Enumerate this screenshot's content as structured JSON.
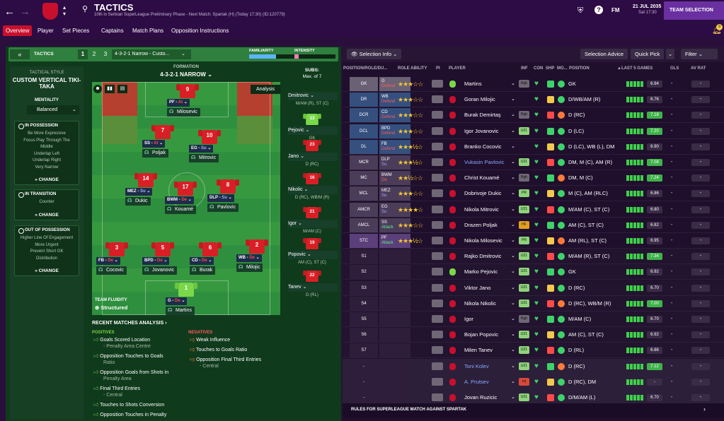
{
  "header": {
    "title": "TACTICS",
    "subtitle": "10th in Serbian SuperLeague Preliminary Phase - Next Match: Spartak (H) (Today 17:30) (ID:120779)",
    "date": "21 JUL 2035",
    "time": "Sat 17:30",
    "fm_label": "FM",
    "team_selection_label": "TEAM SELECTION",
    "notif_count": "9"
  },
  "nav": {
    "tabs": [
      "Overview",
      "Player",
      "Set Pieces",
      "Captains",
      "Match Plans",
      "Opposition Instructions"
    ]
  },
  "tactics_bar": {
    "label": "TACTICS",
    "slots": [
      "1",
      "2",
      "3"
    ],
    "current": "4-3-2-1 Narrow - Custo...",
    "familiarity_label": "FAMILIARITY",
    "intensity_label": "INTENSITY"
  },
  "style": {
    "label": "TACTICAL STYLE",
    "name": "CUSTOM VERTICAL TIKI-TAKA",
    "mentality_label": "MENTALITY",
    "mentality": "Balanced",
    "in_possession": {
      "title": "IN POSSESSION",
      "lines": [
        "Be More Expressive",
        "Focus Play Through The",
        "Middle",
        "Underlap Left",
        "Underlap Right",
        "Very Narrow"
      ],
      "change": "CHANGE"
    },
    "in_transition": {
      "title": "IN TRANSITION",
      "lines": [
        "Counter"
      ],
      "change": "CHANGE"
    },
    "out_possession": {
      "title": "OUT OF POSSESSION",
      "lines": [
        "Higher Line Of Engagement",
        "More Urgent",
        "Prevent Short GK",
        "Distribution"
      ],
      "change": "CHANGE"
    }
  },
  "formation": {
    "label": "FORMATION",
    "name": "4-3-2-1 NARROW",
    "analysis_label": "Analysis",
    "fluidity_label": "TEAM FLUIDITY",
    "fluidity": "Structured"
  },
  "pitch_players": [
    {
      "num": "9",
      "role": "PF",
      "duty": "At",
      "name": "Milosevic"
    },
    {
      "num": "7",
      "role": "SS",
      "duty": "At",
      "name": "Poljak"
    },
    {
      "num": "10",
      "role": "EG",
      "duty": "Su",
      "name": "Mitrovic"
    },
    {
      "num": "14",
      "role": "MEZ",
      "duty": "Su",
      "name": "Dukic"
    },
    {
      "num": "17",
      "role": "BWM",
      "duty": "De",
      "name": "Kouamé"
    },
    {
      "num": "8",
      "role": "DLP",
      "duty": "Su",
      "name": "Pavlovic"
    },
    {
      "num": "3",
      "role": "FB",
      "duty": "De",
      "name": "Cocovic"
    },
    {
      "num": "5",
      "role": "BPD",
      "duty": "De",
      "name": "Jovanovic"
    },
    {
      "num": "6",
      "role": "CD",
      "duty": "De",
      "name": "Burak"
    },
    {
      "num": "2",
      "role": "WB",
      "duty": "De",
      "name": "Milojic"
    },
    {
      "num": "1",
      "role": "G",
      "duty": "De",
      "name": "Martins"
    }
  ],
  "subs": {
    "label": "SUBS:",
    "max": "Max. of 7",
    "players": [
      {
        "name": "Dmitrovic",
        "num": "",
        "pos": "M/AM (R), ST (C)"
      },
      {
        "name": "Pejovic",
        "num": "13",
        "pos": "GK"
      },
      {
        "name": "Jano",
        "num": "23",
        "pos": "D (RC)"
      },
      {
        "name": "Nikolic",
        "num": "16",
        "pos": "D (RC), WB/M (R)"
      },
      {
        "name": "Igor",
        "num": "21",
        "pos": "M/AM (C)"
      },
      {
        "name": "Popovic",
        "num": "19",
        "pos": "AM (C), ST (C)"
      },
      {
        "name": "Tanev",
        "num": "22",
        "pos": "D (RL)"
      }
    ]
  },
  "analysis": {
    "title": "RECENT MATCHES ANALYSIS ›",
    "positives_label": "POSITIVES",
    "negatives_label": "NEGATIVES",
    "positives": [
      [
        "Goals Scored Location",
        "- Penalty Area Centre"
      ],
      [
        "Opposition Touches to Goals",
        "Ratio"
      ],
      [
        "Opposition Goals from Shots in",
        "Penalty Area"
      ],
      [
        "Final Third Entries",
        "- Central"
      ],
      [
        "Touches to Shots Conversion",
        ""
      ],
      [
        "Opposition Touches in Penalty",
        ""
      ]
    ],
    "negatives": [
      [
        "Weak Influence",
        ""
      ],
      [
        "Touches to Goals Ratio",
        ""
      ],
      [
        "Opposition Final Third Entries",
        "- Central"
      ]
    ]
  },
  "selection": {
    "info_label": "Selection Info",
    "advice": "Selection Advice",
    "quick_pick": "Quick Pick",
    "filter": "Filter",
    "columns": [
      "POSITION/ROLE/DU...",
      "ROLE ABILITY",
      "PI",
      "PLAYER",
      "INF",
      "CON",
      "SHP",
      "MO...",
      "POSITION",
      "▲LAST 5 GAMES",
      "GLS",
      "AV RAT"
    ],
    "footer": "RULES FOR SUPERLEAGUE MATCH AGAINST SPARTAK",
    "rows": [
      {
        "pos": "GK",
        "role": "G",
        "duty": "Defend",
        "stars": "★★★☆☆",
        "name": "Martins",
        "inf": "Rgb",
        "position": "GK",
        "avg": "6.94",
        "gls": "-",
        "rat": "-"
      },
      {
        "pos": "DR",
        "role": "WB",
        "duty": "Defend",
        "stars": "★★★☆☆",
        "name": "Goran Milojic",
        "inf": "",
        "position": "D/WB/AM (R)",
        "avg": "6.76",
        "gls": "-",
        "rat": "-"
      },
      {
        "pos": "DCR",
        "role": "CD",
        "duty": "Defend",
        "stars": "★★★☆☆",
        "name": "Burak Demirtaş",
        "inf": "Rgb",
        "position": "D (RC)",
        "avg": "7.18",
        "gls": "-",
        "rat": "-"
      },
      {
        "pos": "DCL",
        "role": "BPD",
        "duty": "Defend",
        "stars": "★★★☆☆",
        "name": "Igor Jovanovic",
        "inf": "U21",
        "position": "D (LC)",
        "avg": "7.20",
        "gls": "-",
        "rat": "-"
      },
      {
        "pos": "DL",
        "role": "FB",
        "duty": "Defend",
        "stars": "★★★½☆",
        "name": "Branko Cocovic",
        "inf": "",
        "position": "D (LC), WB (L), DM",
        "avg": "6.90",
        "gls": "-",
        "rat": "-"
      },
      {
        "pos": "MCR",
        "role": "DLP",
        "duty": "Su",
        "stars": "★★★½☆",
        "name": "Vukasin Pavlovic",
        "inf": "U21",
        "position": "DM, M (C), AM (R)",
        "avg": "7.08",
        "gls": "-",
        "rat": "-"
      },
      {
        "pos": "MC",
        "role": "BWM",
        "duty": "De",
        "stars": "★★½☆☆",
        "name": "Christ Kouamé",
        "inf": "Rgb",
        "position": "DM, M (C)",
        "avg": "7.24",
        "gls": "-",
        "rat": "-"
      },
      {
        "pos": "MCL",
        "role": "MEZ",
        "duty": "Su",
        "stars": "★★★☆☆",
        "name": "Dobrivoje Dukic",
        "inf": "PR",
        "position": "M (C), AM (RLC)",
        "avg": "6.86",
        "gls": "-",
        "rat": "-"
      },
      {
        "pos": "AMCR",
        "role": "EG",
        "duty": "Su",
        "stars": "★★★★☆",
        "name": "Nikola Mitrovic",
        "inf": "U21",
        "position": "M/AM (C), ST (C)",
        "avg": "6.80",
        "gls": "-",
        "rat": "-"
      },
      {
        "pos": "AMCL",
        "role": "SS",
        "duty": "Attack",
        "stars": "★★★☆☆",
        "name": "Drazen Poljak",
        "inf": "HF",
        "position": "AM (C), ST (C)",
        "avg": "6.82",
        "gls": "-",
        "rat": "-"
      },
      {
        "pos": "STC",
        "role": "PF",
        "duty": "Attack",
        "stars": "★★★½☆",
        "name": "Nikola Milosevic",
        "inf": "PR",
        "position": "AM (RL), ST (C)",
        "avg": "6.95",
        "gls": "-",
        "rat": "-"
      },
      {
        "pos": "S1",
        "role": "",
        "duty": "",
        "stars": "",
        "name": "Rajko Dmitrovic",
        "inf": "U21",
        "position": "M/AM (R), ST (C)",
        "avg": "7.34",
        "gls": "-",
        "rat": "-"
      },
      {
        "pos": "S2",
        "role": "",
        "duty": "",
        "stars": "",
        "name": "Marko Pejovic",
        "inf": "U21",
        "position": "GK",
        "avg": "6.92",
        "gls": "-",
        "rat": "-"
      },
      {
        "pos": "S3",
        "role": "",
        "duty": "",
        "stars": "",
        "name": "Viktor Jano",
        "inf": "U21",
        "position": "D (RC)",
        "avg": "6.70",
        "gls": "-",
        "rat": "-"
      },
      {
        "pos": "S4",
        "role": "",
        "duty": "",
        "stars": "",
        "name": "Nikola Nikolic",
        "inf": "U21",
        "position": "D (RC), WB/M (R)",
        "avg": "7.00",
        "gls": "-",
        "rat": "-"
      },
      {
        "pos": "S5",
        "role": "",
        "duty": "",
        "stars": "",
        "name": "Igor",
        "inf": "Rgb",
        "position": "M/AM (C)",
        "avg": "6.70",
        "gls": "-",
        "rat": "-"
      },
      {
        "pos": "S6",
        "role": "",
        "duty": "",
        "stars": "",
        "name": "Bojan Popovic",
        "inf": "U21",
        "position": "AM (C), ST (C)",
        "avg": "6.92",
        "gls": "-",
        "rat": "-"
      },
      {
        "pos": "S7",
        "role": "",
        "duty": "",
        "stars": "",
        "name": "Milen Tanev",
        "inf": "U21",
        "position": "D (RL)",
        "avg": "6.86",
        "gls": "-",
        "rat": "-"
      },
      {
        "pos": "-",
        "role": "",
        "duty": "",
        "stars": "",
        "name": "Toni Kolev",
        "inf": "U21",
        "position": "D (RC)",
        "avg": "7.12",
        "gls": "-",
        "rat": "-"
      },
      {
        "pos": "-",
        "role": "",
        "duty": "",
        "stars": "",
        "name": "A. Prutsev",
        "inf": "Inj",
        "position": "D (RC), DM",
        "avg": "-",
        "gls": "-",
        "rat": "-"
      },
      {
        "pos": "-",
        "role": "",
        "duty": "",
        "stars": "",
        "name": "Jovan Ruzicic",
        "inf": "U21",
        "position": "D/M/AM (L)",
        "avg": "6.70",
        "gls": "-",
        "rat": "-"
      }
    ]
  }
}
